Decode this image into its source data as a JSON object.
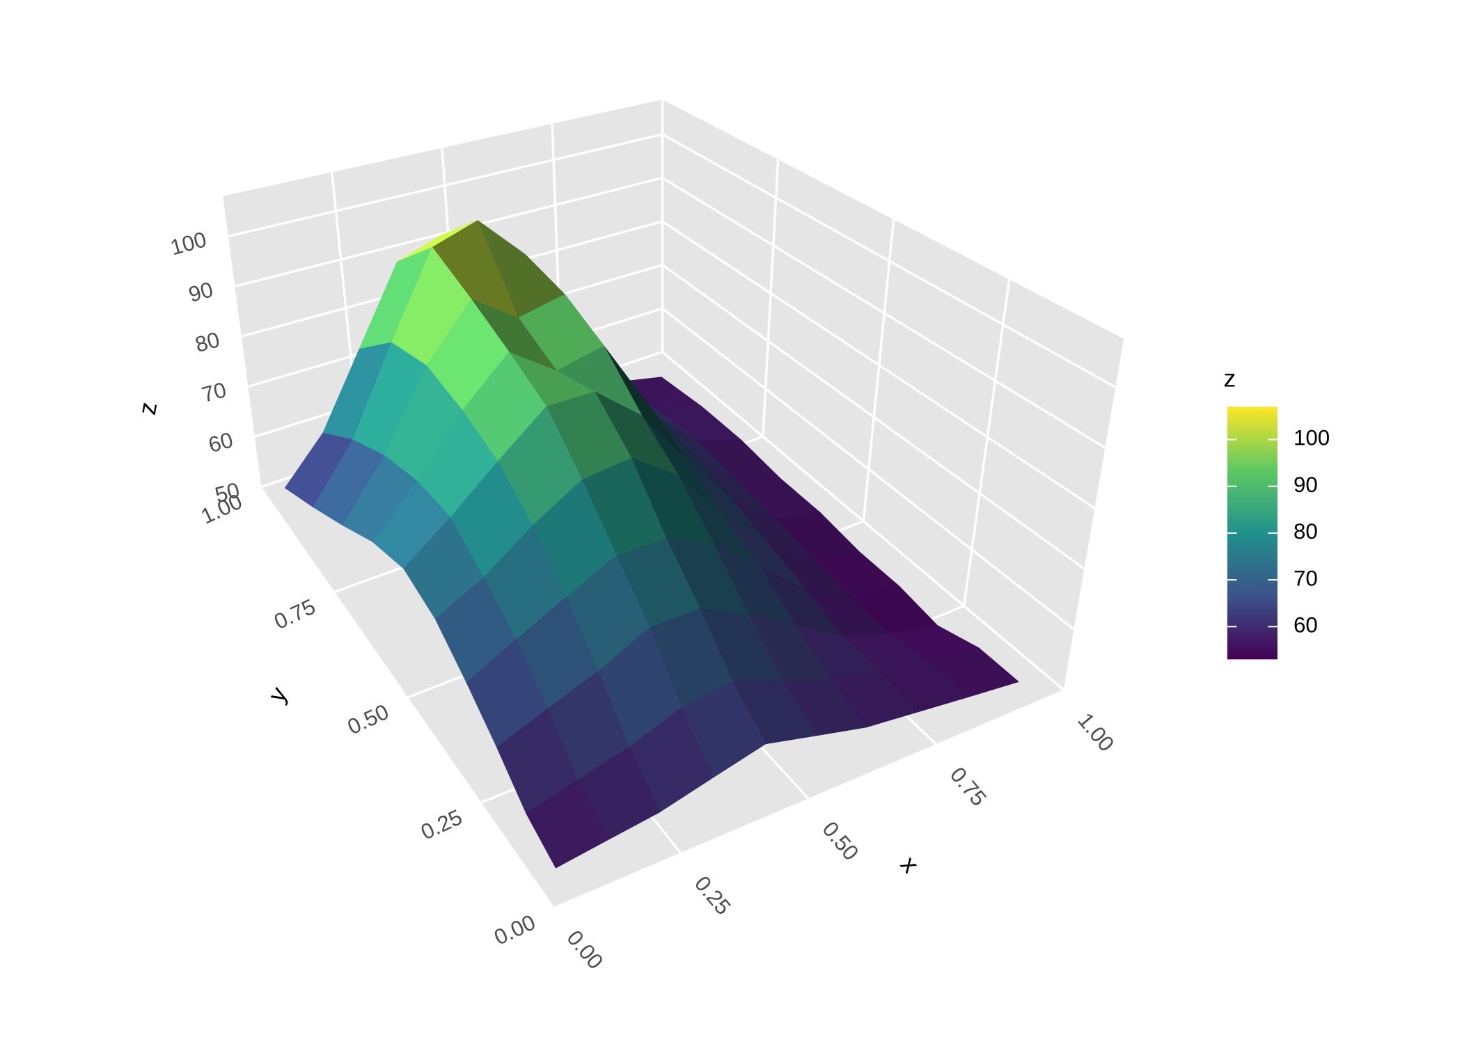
{
  "chart_data": {
    "type": "surface",
    "x": [
      0,
      0.1,
      0.2,
      0.3,
      0.4,
      0.5,
      0.6,
      0.7,
      0.8,
      0.9
    ],
    "y": [
      0,
      0.1,
      0.2,
      0.3,
      0.4,
      0.5,
      0.6,
      0.7,
      0.8,
      0.9
    ],
    "z": [
      [
        56,
        57,
        58,
        60,
        62,
        60,
        58,
        57,
        56,
        55
      ],
      [
        58,
        60,
        62,
        65,
        66,
        63,
        60,
        58,
        56,
        55
      ],
      [
        62,
        65,
        68,
        72,
        72,
        68,
        63,
        58,
        55,
        53
      ],
      [
        66,
        70,
        74,
        78,
        78,
        74,
        67,
        60,
        55,
        54
      ],
      [
        70,
        74,
        80,
        85,
        86,
        80,
        70,
        62,
        56,
        54
      ],
      [
        72,
        78,
        85,
        92,
        92,
        85,
        74,
        64,
        57,
        55
      ],
      [
        70,
        78,
        88,
        96,
        90,
        92,
        78,
        66,
        58,
        55
      ],
      [
        66,
        76,
        90,
        100,
        94,
        96,
        80,
        67,
        59,
        56
      ],
      [
        62,
        72,
        88,
        104,
        107,
        98,
        80,
        66,
        58,
        56
      ],
      [
        58,
        66,
        80,
        95,
        98,
        90,
        75,
        63,
        57,
        55
      ]
    ],
    "xlabel": "x",
    "ylabel": "y",
    "zlabel": "z",
    "xlim": [
      0,
      1
    ],
    "ylim": [
      0,
      1
    ],
    "zlim": [
      50,
      108
    ],
    "xticks": [
      {
        "value": 0,
        "label": "0.00"
      },
      {
        "value": 0.25,
        "label": "0.25"
      },
      {
        "value": 0.5,
        "label": "0.50"
      },
      {
        "value": 0.75,
        "label": "0.75"
      },
      {
        "value": 1,
        "label": "1.00"
      }
    ],
    "yticks": [
      {
        "value": 0,
        "label": "0.00"
      },
      {
        "value": 0.25,
        "label": "0.25"
      },
      {
        "value": 0.5,
        "label": "0.50"
      },
      {
        "value": 0.75,
        "label": "0.75"
      },
      {
        "value": 1,
        "label": "1.00"
      }
    ],
    "zticks": [
      50,
      60,
      70,
      80,
      90,
      100
    ],
    "colorscale": [
      "#440154",
      "#3b528b",
      "#21918c",
      "#5ec962",
      "#fde725"
    ],
    "colorbar_title": "z",
    "clim": [
      53,
      107
    ],
    "colorbar_ticks": [
      60,
      70,
      80,
      90,
      100
    ],
    "grid": true
  }
}
